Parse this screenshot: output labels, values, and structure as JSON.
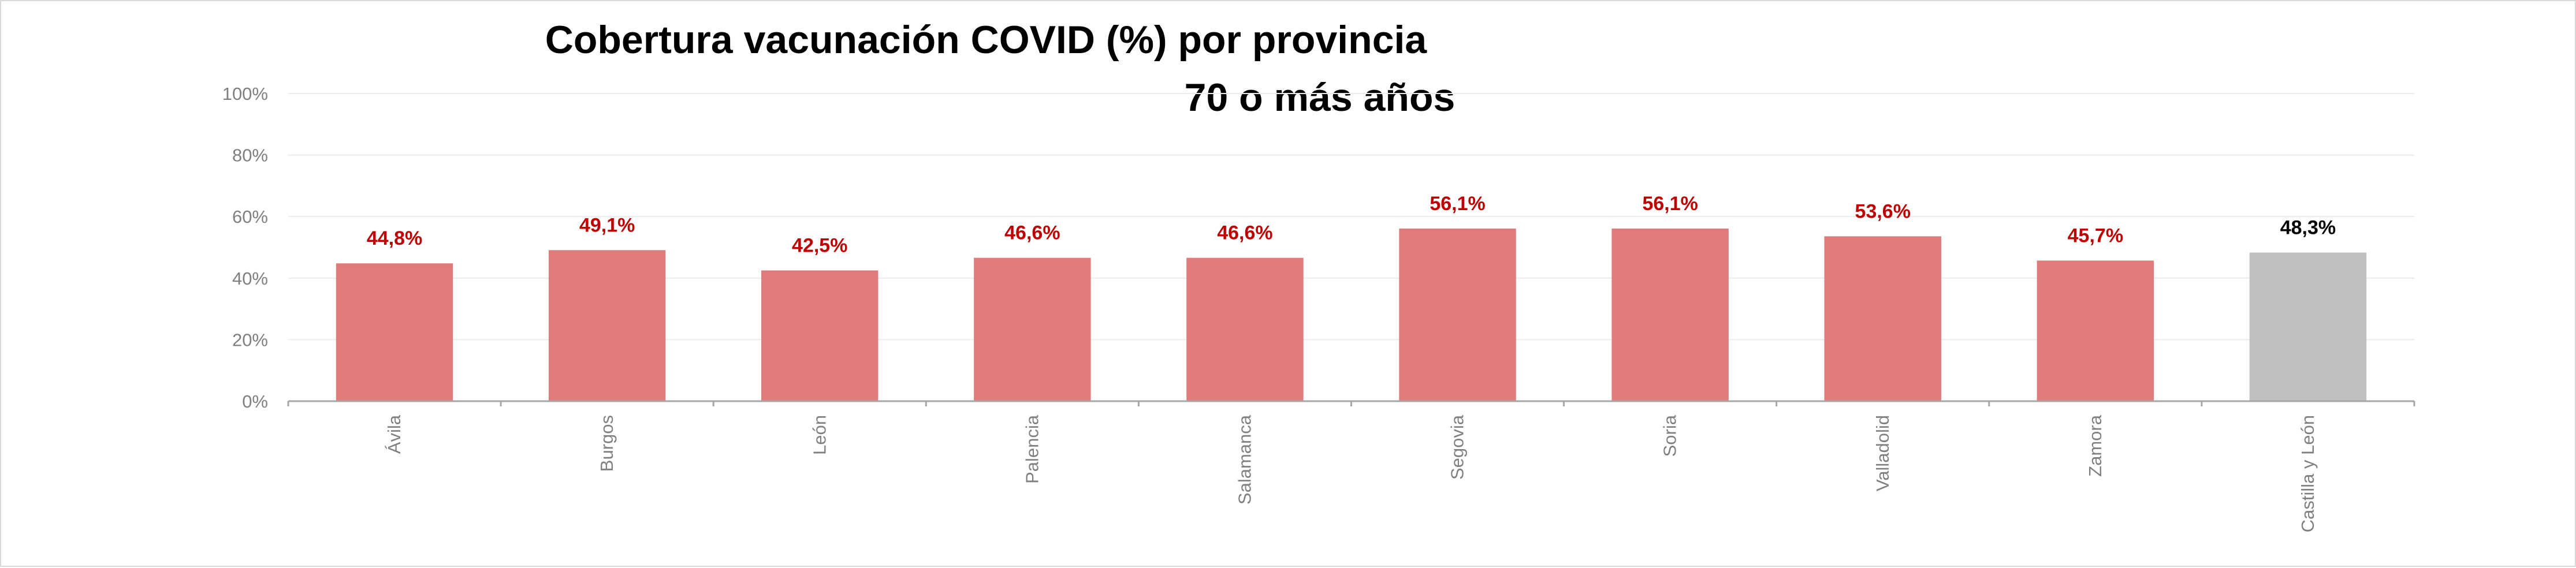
{
  "chart_data": {
    "type": "bar",
    "title": "Cobertura vacunación  COVID  (%) por provincia",
    "subtitle": "70 o más años",
    "categories": [
      "Ávila",
      "Burgos",
      "León",
      "Palencia",
      "Salamanca",
      "Segovia",
      "Soria",
      "Valladolid",
      "Zamora",
      "Castilla y León"
    ],
    "values": [
      44.8,
      49.1,
      42.5,
      46.6,
      46.6,
      56.1,
      56.1,
      53.6,
      45.7,
      48.3
    ],
    "data_labels": [
      "44,8%",
      "49,1%",
      "42,5%",
      "46,6%",
      "46,6%",
      "56,1%",
      "56,1%",
      "53,6%",
      "45,7%",
      "48,3%"
    ],
    "ylim": [
      0,
      100
    ],
    "yticks": [
      0,
      20,
      40,
      60,
      80,
      100
    ],
    "ytick_labels": [
      "0%",
      "20%",
      "40%",
      "60%",
      "80%",
      "100%"
    ],
    "grid": true,
    "legend": "none",
    "colors": {
      "province_bar": "#e07b7b",
      "total_bar": "#bfbfbf",
      "province_label": "#c00000",
      "total_label": "#000000",
      "grid": "#ececec",
      "axis": "#a6a6a6",
      "tick_text": "#7f7f7f"
    },
    "highlight_index": 9
  }
}
